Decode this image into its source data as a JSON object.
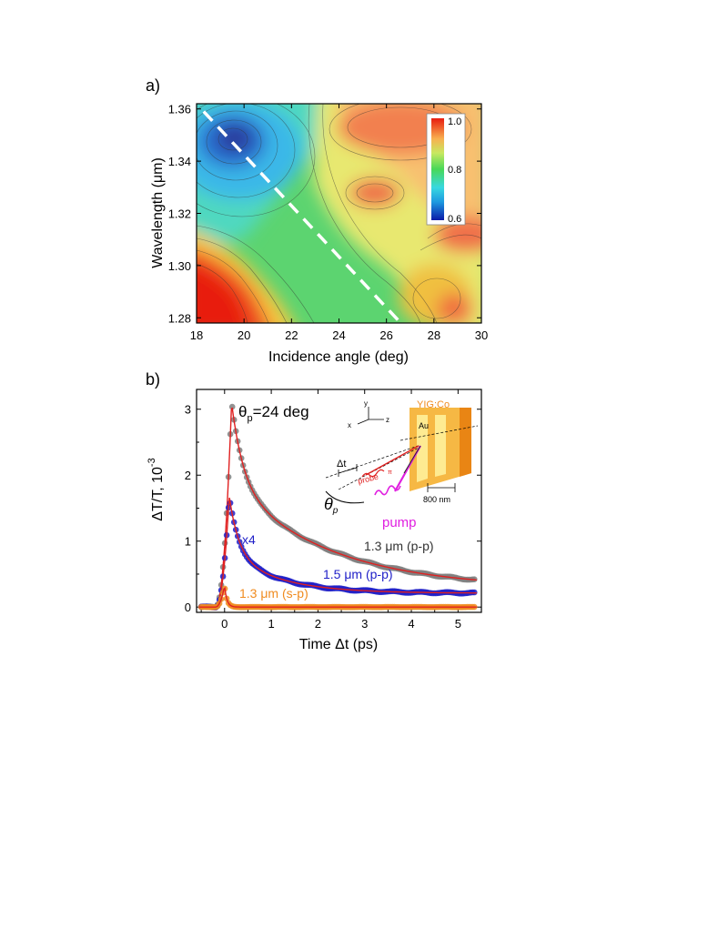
{
  "chart_data": [
    {
      "panel_label": "a)",
      "type": "heatmap",
      "title": "",
      "xlabel": "Incidence angle (deg)",
      "ylabel": "Wavelength (μm)",
      "xlim": [
        18,
        30
      ],
      "ylim": [
        1.278,
        1.362
      ],
      "xticks": [
        18,
        20,
        22,
        24,
        26,
        28,
        30
      ],
      "yticks": [
        1.28,
        1.3,
        1.32,
        1.34,
        1.36
      ],
      "xtick_labels": [
        "18",
        "20",
        "22",
        "24",
        "26",
        "28",
        "30"
      ],
      "ytick_labels": [
        "1.28",
        "1.30",
        "1.32",
        "1.34",
        "1.36"
      ],
      "colorbar": {
        "min": 0.6,
        "max": 1.0,
        "labels": [
          "1.0",
          "0.8",
          "0.6"
        ],
        "values": [
          1.0,
          0.8,
          0.6
        ]
      },
      "dashed_line": {
        "from": [
          18.3,
          1.359
        ],
        "to": [
          26.5,
          1.279
        ]
      },
      "features": [
        {
          "x": 19.5,
          "y": 1.349,
          "value": 0.6
        },
        {
          "x": 19.8,
          "y": 1.281,
          "value": 1.0
        },
        {
          "x": 26.0,
          "y": 1.356,
          "value": 0.96
        },
        {
          "x": 25.6,
          "y": 1.33,
          "value": 0.92
        },
        {
          "x": 29.7,
          "y": 1.313,
          "value": 0.96
        },
        {
          "x": 23.0,
          "y": 1.298,
          "value": 0.78
        }
      ]
    },
    {
      "panel_label": "b)",
      "type": "line",
      "title": "",
      "xlabel": "Time Δt (ps)",
      "ylabel": "ΔT/T, 10",
      "ylabel_exponent": "-3",
      "xlim": [
        -0.6,
        5.5
      ],
      "ylim": [
        -0.08,
        3.3
      ],
      "xticks": [
        0,
        1,
        2,
        3,
        4,
        5
      ],
      "yticks": [
        0,
        1,
        2,
        3
      ],
      "xtick_labels": [
        "0",
        "1",
        "2",
        "3",
        "4",
        "5"
      ],
      "ytick_labels": [
        "0",
        "1",
        "2",
        "3"
      ],
      "annotation": {
        "theta": "θ",
        "sub": "p",
        "rest": "=24 deg"
      },
      "multiplier_label": "x4",
      "series": [
        {
          "name": "1.3 μm (p-p)",
          "color": "#808080",
          "fit_color": "#e02020",
          "peak": 3.1,
          "peak_time": 0.15,
          "rise_start": -0.2,
          "a1": 1.35,
          "tau1": 0.25,
          "a2": 1.75,
          "tau2": 2.1,
          "offset": 0.28
        },
        {
          "name": "1.5 μm (p-p)",
          "color": "#2020c8",
          "fit_color": "#e02020",
          "peak": 1.68,
          "peak_time": 0.1,
          "rise_start": -0.2,
          "a1": 0.85,
          "tau1": 0.2,
          "a2": 0.6,
          "tau2": 1.05,
          "offset": 0.21
        },
        {
          "name": "1.3 μm (s-p)",
          "color": "#f08c20",
          "fit_color": "#e02020",
          "peak": 0.32,
          "peak_time": 0.0,
          "rise_start": -0.2,
          "a1": 0.32,
          "tau1": 0.05,
          "a2": 0.0,
          "tau2": 1.0,
          "offset": 0.0
        }
      ],
      "inset": {
        "material_label": "YIG:Co",
        "metal_label": "Au",
        "period_label": "800 nm",
        "delay_label": "Δt",
        "probe_label": "probe",
        "pump_label": "pump",
        "axis_labels": [
          "x",
          "y",
          "z"
        ],
        "angle_symbol": "θ",
        "angle_sub": "p",
        "small_label": "π",
        "colors": {
          "film": "#f5a623",
          "grating": "#fff3a0",
          "probe": "#e02020",
          "pump": "#e020e0"
        }
      }
    }
  ]
}
